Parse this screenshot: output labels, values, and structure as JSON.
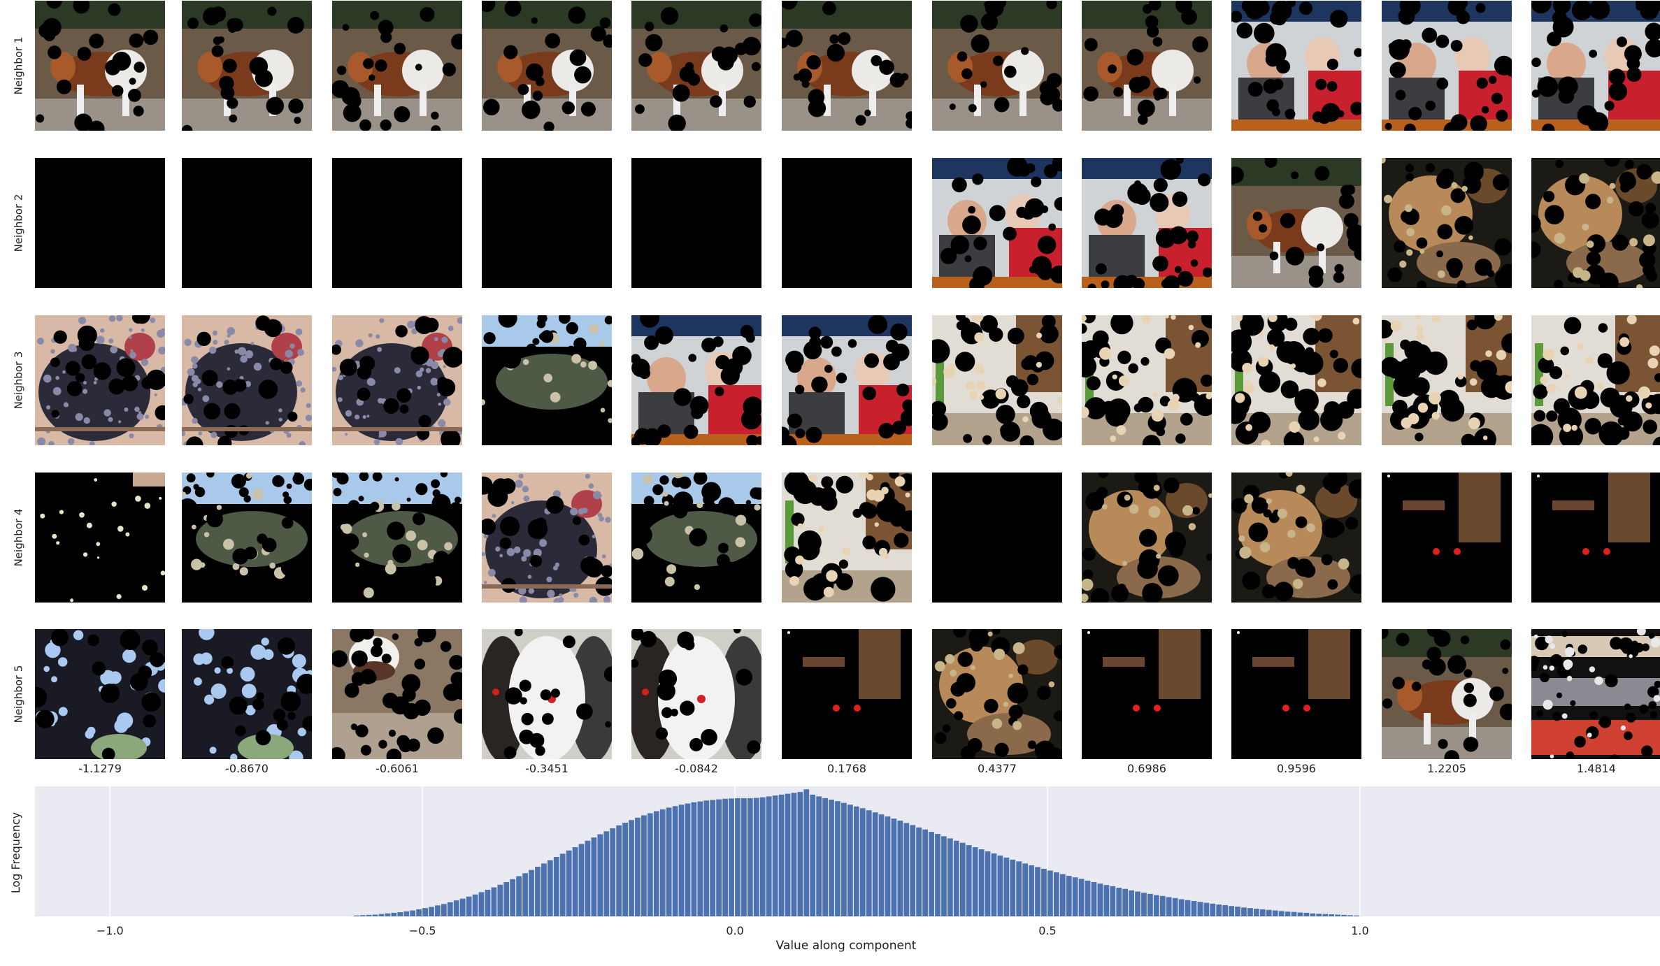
{
  "rows": [
    "Neighbor 1",
    "Neighbor 2",
    "Neighbor 3",
    "Neighbor 4",
    "Neighbor 5"
  ],
  "columns": [
    "-1.1279",
    "-0.8670",
    "-0.6061",
    "-0.3451",
    "-0.0842",
    "0.1768",
    "0.4377",
    "0.6986",
    "0.9596",
    "1.2205",
    "1.4814"
  ],
  "grid": [
    [
      "dog",
      "dog",
      "dog",
      "dog",
      "dog",
      "dog",
      "dog",
      "dog",
      "people",
      "people",
      "people"
    ],
    [
      "black",
      "black",
      "black",
      "black",
      "black",
      "black",
      "people",
      "people",
      "dog",
      "cat",
      "cat"
    ],
    [
      "hen",
      "hen",
      "hen",
      "dots",
      "people",
      "people",
      "room",
      "room",
      "room",
      "room",
      "room"
    ],
    [
      "dark",
      "dots",
      "dots",
      "hen",
      "dots",
      "room",
      "black",
      "cat",
      "cat",
      "darkred",
      "darkred"
    ],
    [
      "bluespot",
      "bluespot",
      "bird",
      "poodle",
      "poodle",
      "darkred",
      "cat",
      "darkred",
      "darkred",
      "dog",
      "shelf"
    ]
  ],
  "chart_data": {
    "type": "bar",
    "xlabel": "Value along component",
    "ylabel": "Log Frequency",
    "xlim": [
      -1.12,
      1.48
    ],
    "xticks": [
      "−1.0",
      "−0.5",
      "0.0",
      "0.5",
      "1.0"
    ],
    "xtick_values": [
      -1.0,
      -0.5,
      0.0,
      0.5,
      1.0
    ],
    "grid": true,
    "bar_color": "#4c72b0",
    "bins_start": -0.61,
    "bin_width": 0.01,
    "log_counts": [
      0.03,
      0.04,
      0.05,
      0.06,
      0.08,
      0.1,
      0.12,
      0.14,
      0.17,
      0.2,
      0.24,
      0.28,
      0.32,
      0.37,
      0.42,
      0.48,
      0.54,
      0.6,
      0.67,
      0.74,
      0.82,
      0.9,
      0.98,
      1.07,
      1.16,
      1.26,
      1.36,
      1.46,
      1.57,
      1.68,
      1.79,
      1.9,
      2.01,
      2.12,
      2.23,
      2.34,
      2.45,
      2.56,
      2.67,
      2.78,
      2.88,
      2.98,
      3.08,
      3.17,
      3.26,
      3.34,
      3.42,
      3.49,
      3.56,
      3.62,
      3.68,
      3.73,
      3.78,
      3.82,
      3.86,
      3.89,
      3.92,
      3.94,
      3.96,
      3.98,
      3.99,
      4.0,
      4.0,
      4.0,
      4.01,
      4.03,
      4.06,
      4.09,
      4.12,
      4.15,
      4.18,
      4.21,
      4.3,
      4.12,
      4.06,
      4.0,
      3.95,
      3.9,
      3.84,
      3.78,
      3.72,
      3.66,
      3.59,
      3.52,
      3.45,
      3.38,
      3.31,
      3.24,
      3.16,
      3.09,
      3.01,
      2.94,
      2.86,
      2.79,
      2.71,
      2.64,
      2.56,
      2.49,
      2.41,
      2.34,
      2.27,
      2.2,
      2.13,
      2.06,
      1.99,
      1.92,
      1.86,
      1.79,
      1.73,
      1.67,
      1.61,
      1.55,
      1.49,
      1.43,
      1.37,
      1.32,
      1.27,
      1.21,
      1.16,
      1.11,
      1.06,
      1.02,
      0.97,
      0.93,
      0.88,
      0.84,
      0.8,
      0.76,
      0.72,
      0.69,
      0.65,
      0.62,
      0.58,
      0.55,
      0.52,
      0.49,
      0.46,
      0.43,
      0.4,
      0.38,
      0.35,
      0.33,
      0.3,
      0.28,
      0.26,
      0.24,
      0.22,
      0.2,
      0.18,
      0.16,
      0.15,
      0.13,
      0.12,
      0.1,
      0.09,
      0.08,
      0.07,
      0.06,
      0.05,
      0.04,
      0.03
    ],
    "ylim": [
      0,
      4.4
    ]
  }
}
